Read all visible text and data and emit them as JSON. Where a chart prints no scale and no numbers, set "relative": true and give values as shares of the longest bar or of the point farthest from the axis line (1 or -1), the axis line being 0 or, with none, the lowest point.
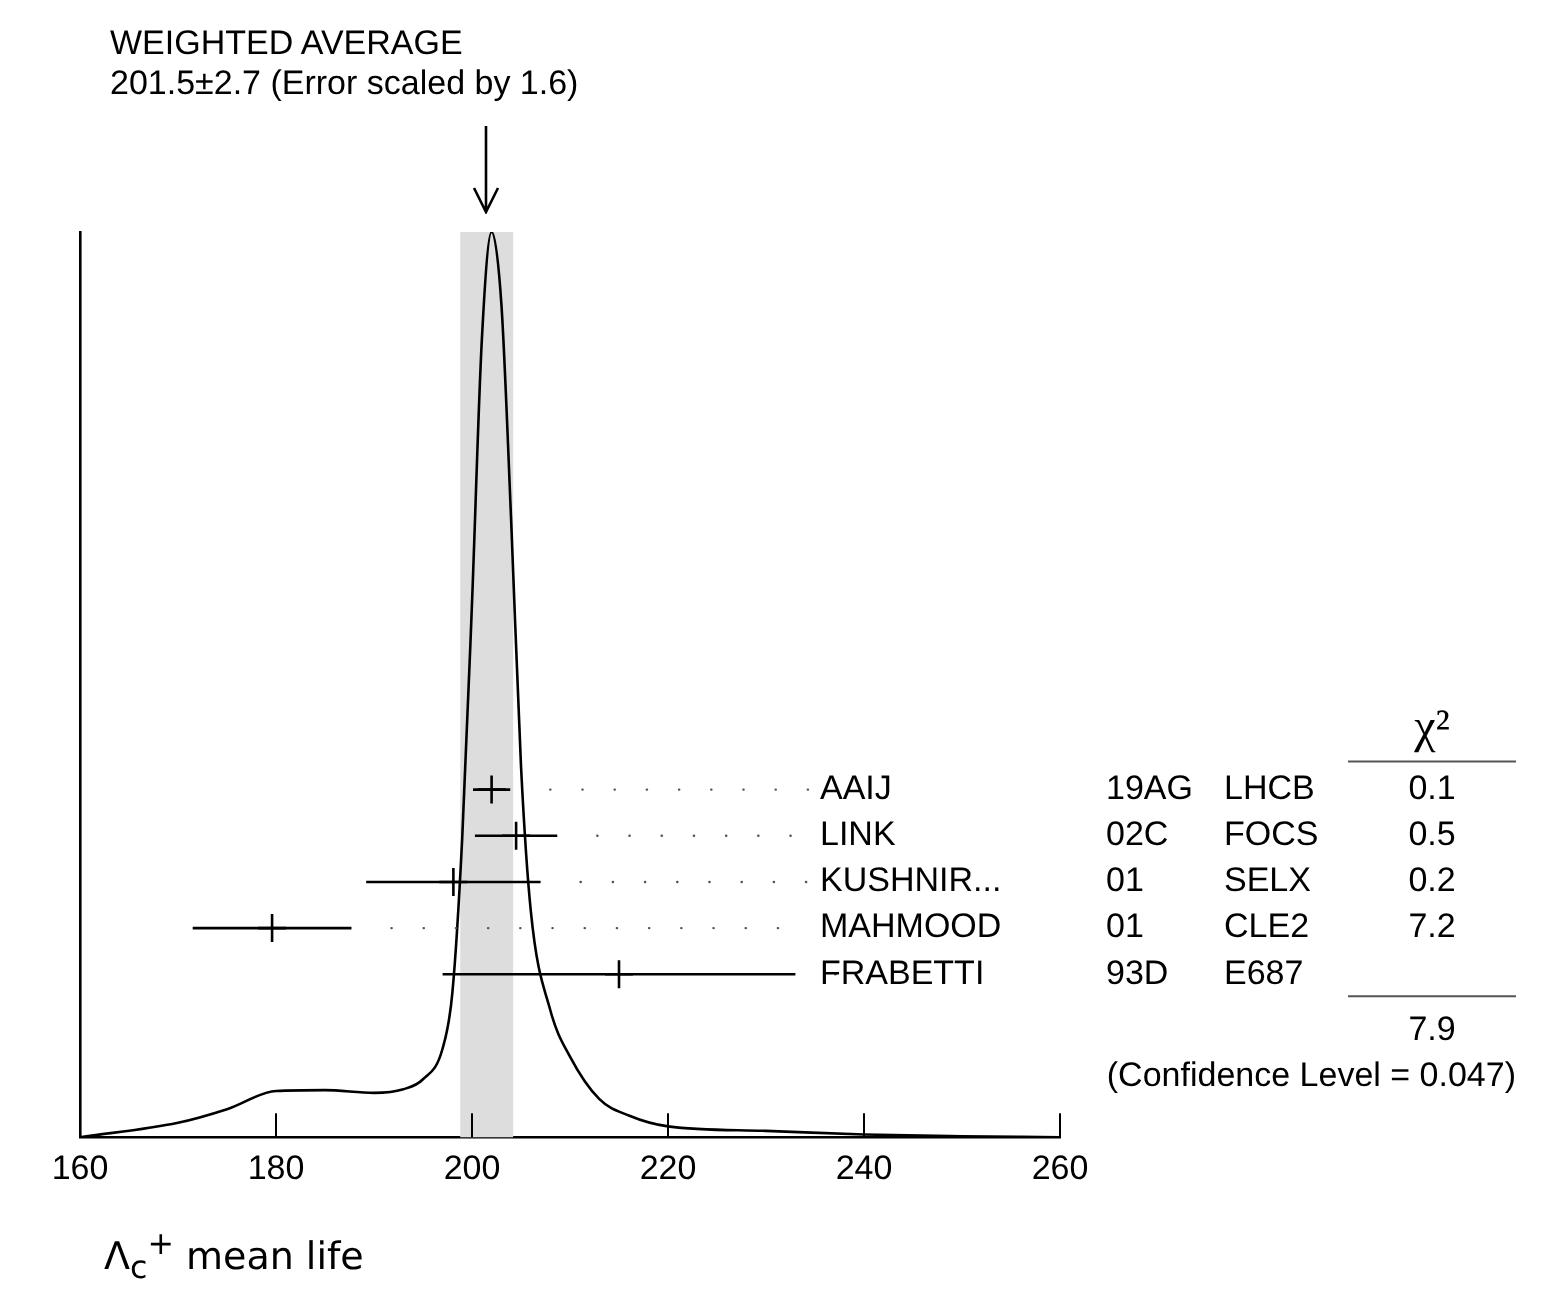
{
  "chart_data": {
    "type": "line",
    "title": "WEIGHTED AVERAGE",
    "subtitle": "201.5±2.7 (Error scaled by 1.6)",
    "xlabel": "Λ$_{c}$$^{+}$ mean life",
    "relative": true,
    "xlim": [
      160,
      260
    ],
    "xticks": [
      160,
      180,
      200,
      220,
      240,
      260
    ],
    "grid": false,
    "legend": false,
    "series": [
      {
        "color": "#000000",
        "marker": "none",
        "x": [
          160,
          170,
          175,
          180,
          185,
          190,
          193,
          195,
          197,
          198,
          199,
          200,
          201,
          202,
          203,
          204,
          205,
          206,
          208,
          210,
          213,
          216,
          220,
          230,
          240,
          250,
          260
        ],
        "values": [
          0,
          0.016,
          0.031,
          0.051,
          0.052,
          0.049,
          0.053,
          0.064,
          0.098,
          0.16,
          0.33,
          0.59,
          0.88,
          1,
          0.92,
          0.68,
          0.41,
          0.25,
          0.14,
          0.089,
          0.042,
          0.024,
          0.012,
          0.007,
          0.003,
          0.001,
          0
        ]
      },
      {
        "type": "scatter",
        "color": "#000000",
        "marker": "cross",
        "x": [
          202.0,
          204.5,
          198.1,
          179.6,
          215
        ],
        "values": [
          0.384,
          0.333,
          0.282,
          0.231,
          0.18
        ],
        "xerrors": [
          1.9,
          4.2,
          8.9,
          8.1,
          18
        ]
      }
    ],
    "bands": [
      {
        "axis": "x",
        "from": 198.8,
        "to": 204.2,
        "color": "#dddddd"
      }
    ],
    "annotations": [
      "χ²",
      "AAIJ",
      "LINK",
      "KUSHNIR...",
      "MAHMOOD",
      "FRABETTI",
      "19AG",
      "02C",
      "01",
      "01",
      "93D",
      "LHCB",
      "FOCS",
      "SELX",
      "CLE2",
      "E687",
      "0.1",
      "0.5",
      "0.2",
      "7.2",
      "7.9",
      "(Confidence Level = 0.047)"
    ]
  }
}
